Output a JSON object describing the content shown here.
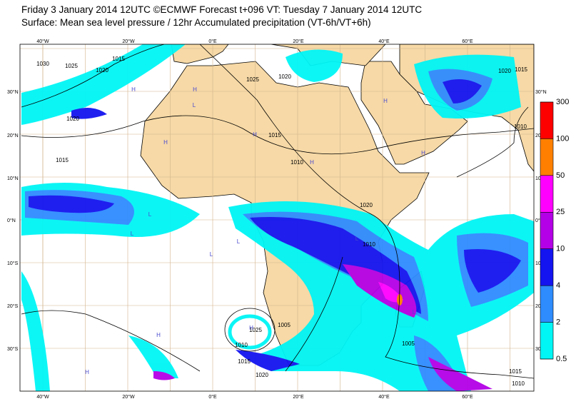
{
  "header": {
    "line1": "Friday 3 January 2014 12UTC ©ECMWF Forecast t+096 VT: Tuesday 7 January 2014 12UTC",
    "line2": "Surface: Mean sea level pressure / 12hr Accumulated precipitation (VT-6h/VT+6h)"
  },
  "map": {
    "lon_labels": [
      "40°W",
      "20°W",
      "0°E",
      "20°E",
      "40°E",
      "60°E"
    ],
    "lat_labels": [
      "30°N",
      "20°N",
      "10°N",
      "0°N",
      "10°S",
      "20°S",
      "30°S"
    ],
    "isobar_labels": [
      1015,
      1025,
      1020,
      1030,
      1020,
      1015,
      1025,
      1020,
      1015,
      1010,
      1020,
      1015,
      1020,
      1025,
      1010,
      1005,
      1010,
      1015,
      1020,
      1005,
      1015,
      1010,
      1010
    ],
    "pressure_centers": [
      "H",
      "L",
      "H",
      "L",
      "H",
      "H",
      "H",
      "H",
      "L",
      "L",
      "L",
      "H",
      "H",
      "L",
      "H",
      "L",
      "H"
    ]
  },
  "colorbar": {
    "levels": [
      0.5,
      2,
      4,
      10,
      25,
      50,
      100,
      300
    ],
    "colors": [
      "#00f5f5",
      "#2e8cff",
      "#1414f0",
      "#b400e6",
      "#ff00ff",
      "#ff8000",
      "#ff0000"
    ]
  }
}
